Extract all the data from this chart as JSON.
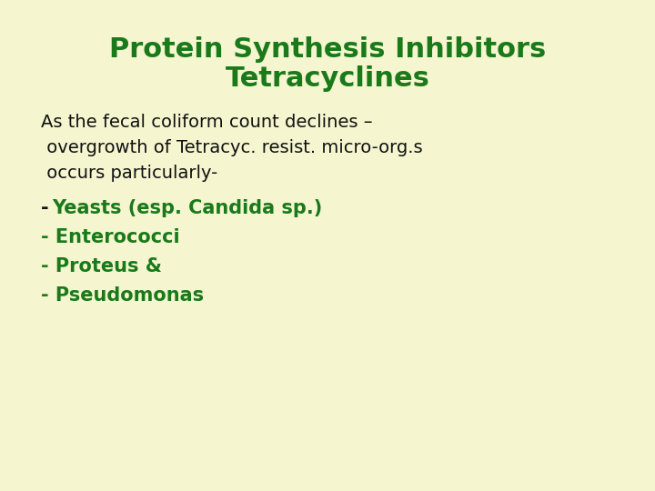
{
  "background_color": "#f5f5d0",
  "title_line1": "Protein Synthesis Inhibitors",
  "title_line2": "Tetracyclines",
  "title_color": "#1a7a1a",
  "title_fontsize": 22,
  "body_text_color": "#111111",
  "body_fontsize": 14,
  "green_color": "#1a7a1a",
  "green_fontsize": 15,
  "body_lines": [
    "As the fecal coliform count declines –",
    " overgrowth of Tetracyc. resist. micro-org.s",
    " occurs particularly-"
  ],
  "bullet_dash": "-",
  "bullet_green_line": "Yeasts (esp. Candida sp.)",
  "bullet_items": [
    "- Enterococci",
    "- Proteus &",
    "- Pseudomonas"
  ]
}
